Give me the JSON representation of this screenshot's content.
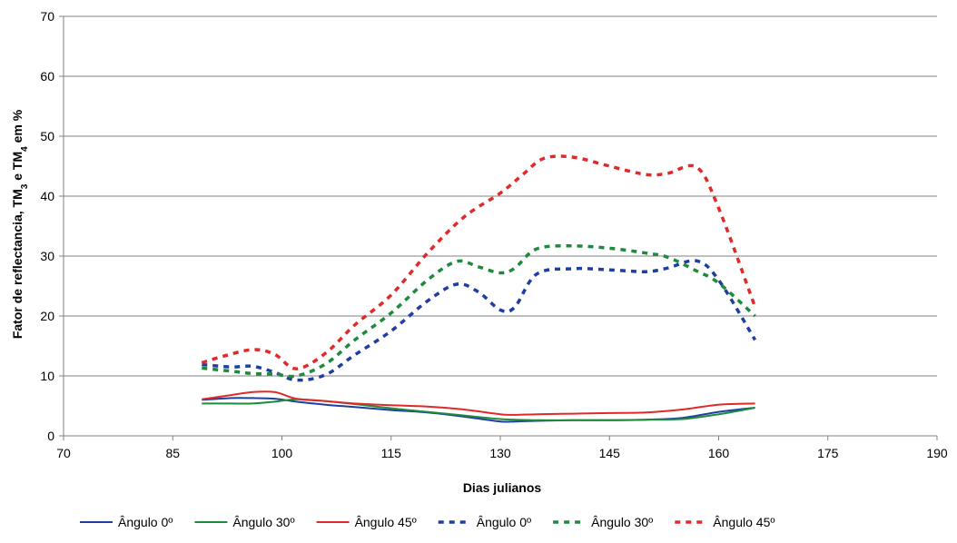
{
  "chart_data": {
    "type": "line",
    "xlabel": "Dias julianos",
    "ylabel_parts": [
      "Fator de reflectancia, TM",
      "3",
      " e TM",
      "4",
      " em %"
    ],
    "xlim": [
      70,
      190
    ],
    "ylim": [
      0,
      70
    ],
    "xticks": [
      70,
      85,
      100,
      115,
      130,
      145,
      160,
      175,
      190
    ],
    "yticks": [
      0,
      10,
      20,
      30,
      40,
      50,
      60,
      70
    ],
    "grid": "horizontal",
    "legend_position": "bottom",
    "series": [
      {
        "name": "Ângulo 0º",
        "color": "#1f3fa0",
        "style": "solid",
        "x": [
          89,
          93,
          96,
          99,
          102,
          106,
          110,
          115,
          120,
          125,
          130,
          132,
          135,
          140,
          145,
          150,
          155,
          160,
          165
        ],
        "y": [
          6.0,
          6.3,
          6.3,
          6.2,
          5.7,
          5.2,
          4.8,
          4.3,
          3.9,
          3.2,
          2.4,
          2.4,
          2.5,
          2.6,
          2.6,
          2.7,
          3.0,
          4.0,
          4.7
        ]
      },
      {
        "name": "Ângulo 30º",
        "color": "#1e8a3c",
        "style": "solid",
        "x": [
          89,
          93,
          96,
          99,
          102,
          106,
          110,
          115,
          120,
          125,
          130,
          132,
          135,
          140,
          145,
          150,
          155,
          160,
          165
        ],
        "y": [
          5.4,
          5.4,
          5.4,
          5.7,
          6.1,
          5.8,
          5.3,
          4.6,
          4.0,
          3.4,
          2.8,
          2.7,
          2.6,
          2.6,
          2.6,
          2.7,
          2.8,
          3.6,
          4.7
        ]
      },
      {
        "name": "Ângulo 45º",
        "color": "#e02a2a",
        "style": "solid",
        "x": [
          89,
          93,
          96,
          99,
          102,
          106,
          110,
          115,
          120,
          125,
          130,
          132,
          135,
          140,
          145,
          150,
          155,
          160,
          165
        ],
        "y": [
          6.1,
          6.8,
          7.3,
          7.3,
          6.2,
          5.8,
          5.4,
          5.1,
          4.9,
          4.4,
          3.6,
          3.5,
          3.6,
          3.7,
          3.8,
          3.9,
          4.4,
          5.2,
          5.4
        ]
      },
      {
        "name": "Ângulo 0º",
        "color": "#1f3fa0",
        "style": "dashed",
        "x": [
          89,
          93,
          96,
          99,
          102,
          106,
          110,
          115,
          120,
          124,
          127,
          130,
          132,
          135,
          140,
          145,
          150,
          153,
          157,
          160,
          165
        ],
        "y": [
          11.9,
          11.5,
          11.6,
          10.6,
          9.3,
          10.2,
          13.5,
          17.5,
          22.5,
          25.3,
          24.0,
          21.0,
          21.5,
          27.0,
          27.9,
          27.7,
          27.4,
          28.0,
          29.2,
          26.0,
          16.0
        ]
      },
      {
        "name": "Ângulo 30º",
        "color": "#1e8a3c",
        "style": "dashed",
        "x": [
          89,
          93,
          96,
          99,
          102,
          106,
          110,
          115,
          120,
          124,
          127,
          130,
          132,
          135,
          140,
          145,
          150,
          153,
          157,
          160,
          165
        ],
        "y": [
          11.3,
          10.8,
          10.4,
          10.3,
          10.0,
          12.0,
          16.0,
          20.5,
          26.0,
          29.1,
          28.2,
          27.2,
          28.0,
          31.2,
          31.7,
          31.3,
          30.5,
          29.8,
          27.5,
          25.5,
          20.0
        ]
      },
      {
        "name": "Ângulo 45º",
        "color": "#e02a2a",
        "style": "dashed",
        "x": [
          89,
          92,
          96,
          99,
          102,
          106,
          110,
          115,
          120,
          125,
          130,
          133,
          136,
          140,
          145,
          150,
          153,
          157,
          160,
          165
        ],
        "y": [
          12.2,
          13.3,
          14.4,
          13.6,
          11.2,
          13.8,
          18.5,
          23.5,
          30.5,
          36.5,
          40.5,
          43.5,
          46.3,
          46.5,
          45.0,
          43.6,
          43.8,
          44.8,
          38.0,
          21.5
        ]
      }
    ]
  }
}
